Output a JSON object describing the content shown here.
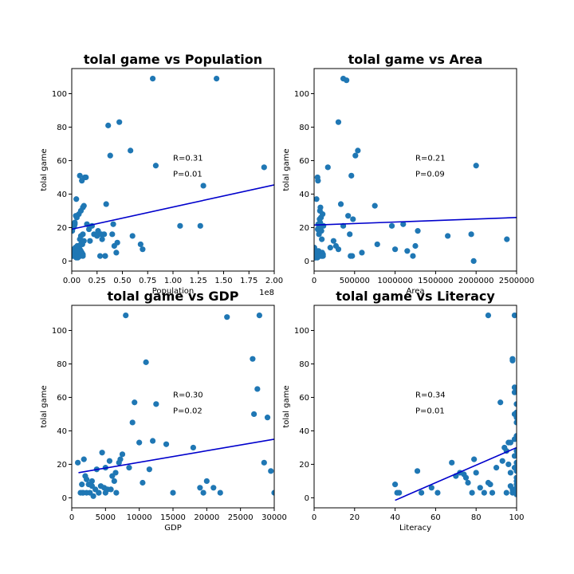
{
  "colors": {
    "points": "#1f77b4",
    "fit": "#0000cc",
    "axes": "#000000",
    "background": "#ffffff"
  },
  "chart_data": [
    {
      "type": "scatter",
      "title": "tolal game vs Population",
      "xlabel": "Population",
      "ylabel": "tolal game",
      "x_scale_note": "1e8",
      "xlim": [
        0,
        200000000
      ],
      "ylim": [
        -6,
        115
      ],
      "x_ticks": [
        0,
        25000000,
        50000000,
        75000000,
        100000000,
        125000000,
        150000000,
        175000000,
        200000000
      ],
      "x_tick_labels": [
        "0.00",
        "0.25",
        "0.50",
        "0.75",
        "1.00",
        "1.25",
        "1.50",
        "1.75",
        "2.00"
      ],
      "y_ticks": [
        0,
        20,
        40,
        60,
        80,
        100
      ],
      "y_tick_labels": [
        "0",
        "20",
        "40",
        "60",
        "80",
        "100"
      ],
      "annotation_lines": [
        "R=0.31",
        "P=0.01"
      ],
      "annotation_pos": [
        100000000,
        60
      ],
      "fit": {
        "x": [
          0,
          200000000
        ],
        "y": [
          19,
          45.5
        ]
      },
      "points": {
        "x": [
          300000,
          500000,
          800000,
          1000000,
          1200000,
          1500000,
          1800000,
          2000000,
          2200000,
          2500000,
          2800000,
          3000000,
          3500000,
          4000000,
          4500000,
          5000000,
          5500000,
          6000000,
          6500000,
          7000000,
          7500000,
          8000000,
          8500000,
          9000000,
          10000000,
          10500000,
          11000000,
          3000000,
          4500000,
          5500000,
          6500000,
          7500000,
          8500000,
          10000000,
          11000000,
          2500000,
          4000000,
          5500000,
          7000000,
          2000000,
          3500000,
          5000000,
          6000000,
          500000,
          1500000,
          2500000,
          3000000,
          5000000,
          7000000,
          9000000,
          11000000,
          10000000,
          8000000,
          9000000,
          11000000,
          12000000,
          13000000,
          15000000,
          17000000,
          18000000,
          20000000,
          22000000,
          25000000,
          26000000,
          28000000,
          29000000,
          30000000,
          32000000,
          33000000,
          34000000,
          36000000,
          38000000,
          40000000,
          41000000,
          42000000,
          44000000,
          45000000,
          47000000,
          58000000,
          60000000,
          68000000,
          70000000,
          80000000,
          83000000,
          107000000,
          127000000,
          130000000,
          143000000,
          190000000,
          3000000,
          4000000,
          4500000,
          8000000,
          10000000,
          14000000,
          33000000,
          12000000,
          9000000
        ],
        "y": [
          3,
          5,
          4,
          6,
          3,
          5,
          7,
          4,
          3,
          5,
          6,
          4,
          8,
          5,
          7,
          4,
          9,
          6,
          5,
          8,
          3,
          7,
          4,
          6,
          5,
          10,
          4,
          3,
          2,
          4,
          3,
          5,
          3,
          4,
          3,
          7,
          6,
          9,
          5,
          4,
          3,
          6,
          2,
          18,
          20,
          21,
          22,
          26,
          28,
          30,
          32,
          11,
          13,
          15,
          16,
          33,
          50,
          22,
          19,
          12,
          21,
          16,
          15,
          18,
          3,
          16,
          13,
          16,
          3,
          34,
          81,
          63,
          16,
          22,
          9,
          5,
          11,
          83,
          66,
          15,
          10,
          7,
          109,
          57,
          21,
          21,
          45,
          109,
          56,
          23,
          27,
          37,
          51,
          48,
          50,
          3,
          12,
          10
        ],
        "comment": "x in people, y in total games"
      }
    },
    {
      "type": "scatter",
      "title": "tolal game vs Area",
      "xlabel": "Area",
      "ylabel": "tolal game",
      "xlim": [
        0,
        2500000
      ],
      "ylim": [
        -6,
        115
      ],
      "x_ticks": [
        0,
        500000,
        1000000,
        1500000,
        2000000,
        2500000
      ],
      "x_tick_labels": [
        "0",
        "500000",
        "1000000",
        "1500000",
        "2000000",
        "2500000"
      ],
      "y_ticks": [
        0,
        20,
        40,
        60,
        80,
        100
      ],
      "y_tick_labels": [
        "0",
        "20",
        "40",
        "60",
        "80",
        "100"
      ],
      "annotation_lines": [
        "R=0.21",
        "P=0.09"
      ],
      "annotation_pos": [
        1250000,
        60
      ],
      "fit": {
        "x": [
          0,
          2500000
        ],
        "y": [
          21.5,
          26
        ]
      },
      "points": {
        "x": [
          2000,
          5000,
          8000,
          10000,
          15000,
          20000,
          25000,
          30000,
          35000,
          40000,
          45000,
          50000,
          55000,
          60000,
          65000,
          70000,
          80000,
          90000,
          100000,
          110000,
          3000,
          6000,
          12000,
          18000,
          22000,
          28000,
          33000,
          38000,
          42000,
          48000,
          52000,
          58000,
          62000,
          68000,
          72000,
          78000,
          85000,
          95000,
          105000,
          115000,
          30000,
          45000,
          60000,
          75000,
          90000,
          100000,
          110000,
          170000,
          200000,
          240000,
          270000,
          300000,
          330000,
          360000,
          400000,
          420000,
          440000,
          460000,
          470000,
          480000,
          510000,
          540000,
          590000,
          750000,
          780000,
          960000,
          1000000,
          1100000,
          1150000,
          1220000,
          1250000,
          1280000,
          1650000,
          1940000,
          1970000,
          2000000,
          2380000,
          300000,
          360000,
          450000
        ],
        "y": [
          3,
          5,
          2,
          4,
          3,
          6,
          4,
          3,
          5,
          2,
          4,
          3,
          6,
          5,
          4,
          3,
          4,
          3,
          5,
          4,
          8,
          6,
          3,
          2,
          5,
          4,
          3,
          6,
          50,
          48,
          22,
          20,
          18,
          25,
          30,
          32,
          26,
          13,
          28,
          21,
          37,
          19,
          16,
          23,
          18,
          3,
          3,
          56,
          8,
          12,
          9,
          7,
          34,
          21,
          108,
          27,
          16,
          51,
          3,
          25,
          63,
          66,
          5,
          33,
          10,
          21,
          7,
          22,
          6,
          3,
          9,
          18,
          15,
          16,
          0,
          57,
          13,
          83,
          109,
          3
        ],
        "comment": "x in area units, y in total games"
      }
    },
    {
      "type": "scatter",
      "title": "tolal game vs GDP",
      "xlabel": "GDP",
      "ylabel": "tolal game",
      "xlim": [
        0,
        30000
      ],
      "ylim": [
        -6,
        115
      ],
      "x_ticks": [
        0,
        5000,
        10000,
        15000,
        20000,
        25000,
        30000
      ],
      "x_tick_labels": [
        "0",
        "5000",
        "10000",
        "15000",
        "20000",
        "25000",
        "30000"
      ],
      "y_ticks": [
        0,
        20,
        40,
        60,
        80,
        100
      ],
      "y_tick_labels": [
        "0",
        "20",
        "40",
        "60",
        "80",
        "100"
      ],
      "annotation_lines": [
        "R=0.30",
        "P=0.02"
      ],
      "annotation_pos": [
        15000,
        60
      ],
      "fit": {
        "x": [
          1000,
          30000
        ],
        "y": [
          15,
          35
        ]
      },
      "points": {
        "x": [
          900,
          1300,
          1500,
          1700,
          1800,
          2000,
          2200,
          2500,
          2700,
          3000,
          3200,
          3500,
          3700,
          4000,
          4300,
          4500,
          4800,
          5000,
          5300,
          5600,
          6000,
          6300,
          6600,
          7000,
          7500,
          8000,
          8500,
          9000,
          9300,
          10000,
          10500,
          11000,
          11500,
          12000,
          12500,
          14000,
          15000,
          18000,
          19000,
          19500,
          20000,
          21000,
          22000,
          23000,
          26800,
          27000,
          27500,
          27800,
          28500,
          29000,
          29500,
          30000,
          1600,
          2200,
          3000,
          4000,
          5000,
          5800,
          6500,
          7200
        ],
        "y": [
          21,
          3,
          8,
          3,
          23,
          13,
          3,
          8,
          3,
          10,
          1,
          5,
          17,
          3,
          7,
          27,
          6,
          18,
          5,
          22,
          13,
          10,
          3,
          21,
          26,
          109,
          18,
          45,
          57,
          33,
          9,
          81,
          17,
          34,
          56,
          32,
          3,
          30,
          6,
          3,
          10,
          6,
          3,
          108,
          83,
          50,
          65,
          109,
          21,
          48,
          16,
          3,
          3,
          11,
          7,
          3,
          3,
          5,
          15,
          23
        ],
        "comment": "x in GDP units, y in total games"
      }
    },
    {
      "type": "scatter",
      "title": "tolal game vs Literacy",
      "xlabel": "Literacy",
      "ylabel": "tolal game",
      "xlim": [
        0,
        100
      ],
      "ylim": [
        -6,
        115
      ],
      "x_ticks": [
        0,
        20,
        40,
        60,
        80,
        100
      ],
      "x_tick_labels": [
        "0",
        "20",
        "40",
        "60",
        "80",
        "100"
      ],
      "y_ticks": [
        0,
        20,
        40,
        60,
        80,
        100
      ],
      "y_tick_labels": [
        "0",
        "20",
        "40",
        "60",
        "80",
        "100"
      ],
      "annotation_lines": [
        "R=0.34",
        "P=0.01"
      ],
      "annotation_pos": [
        50,
        60
      ],
      "fit": {
        "x": [
          40,
          100
        ],
        "y": [
          -1.5,
          30
        ]
      },
      "points": {
        "x": [
          40,
          41,
          42,
          51,
          53,
          58,
          61,
          68,
          70,
          72,
          74,
          75,
          76,
          78,
          79,
          80,
          82,
          84,
          86,
          87,
          88,
          90,
          92,
          93,
          94,
          95,
          96,
          97,
          98,
          98,
          99,
          99,
          99,
          100,
          100,
          100,
          100,
          100,
          100,
          100,
          100,
          86,
          95,
          97,
          98,
          99,
          99,
          100,
          100,
          100,
          100,
          100,
          100,
          99,
          98,
          97,
          96,
          99,
          100,
          100
        ],
        "y": [
          8,
          3,
          3,
          16,
          3,
          6,
          3,
          21,
          13,
          15,
          14,
          12,
          9,
          3,
          23,
          15,
          6,
          3,
          9,
          8,
          3,
          18,
          57,
          22,
          30,
          28,
          33,
          33,
          82,
          83,
          109,
          63,
          66,
          56,
          51,
          48,
          45,
          37,
          28,
          21,
          16,
          109,
          3,
          15,
          5,
          25,
          18,
          12,
          10,
          8,
          6,
          4,
          3,
          35,
          3,
          7,
          20,
          50,
          3,
          2
        ],
        "comment": "x in literacy percent, y in total games"
      }
    }
  ]
}
